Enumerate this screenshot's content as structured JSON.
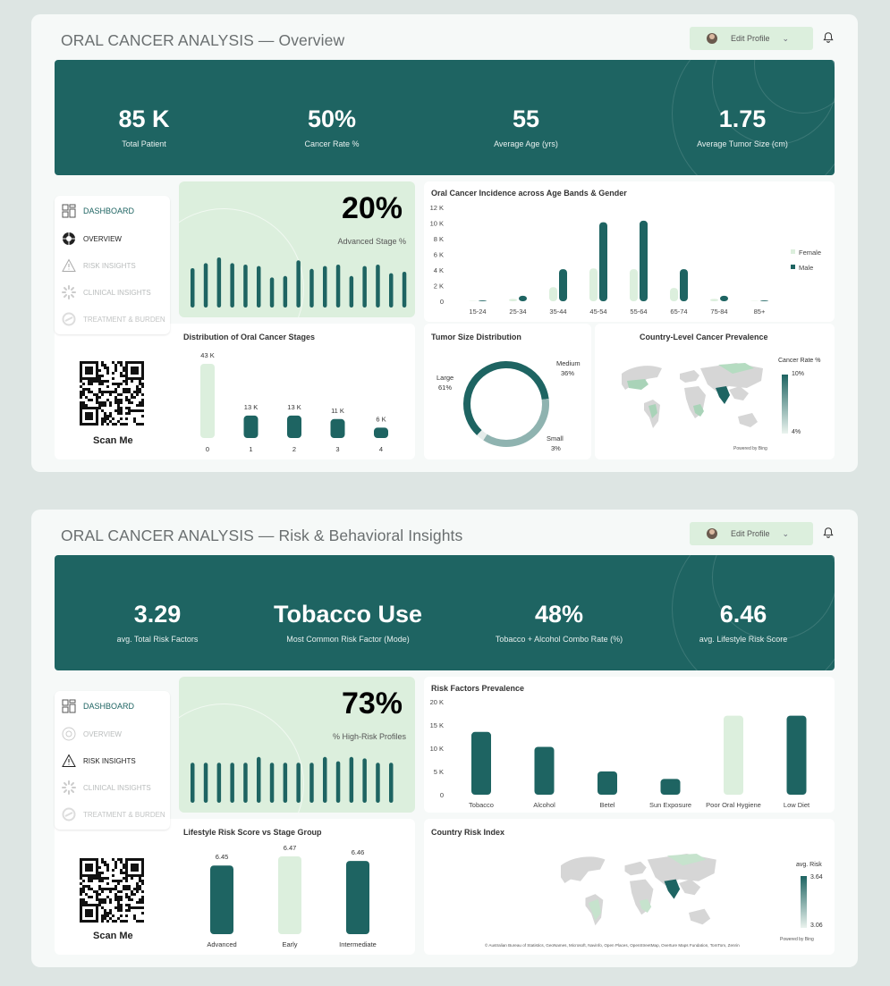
{
  "app": {
    "profile_label": "Edit Profile",
    "scan_label": "Scan Me",
    "powered_by": "Powered by Bing"
  },
  "overview": {
    "title": "ORAL CANCER ANALYSIS — Overview",
    "kpis": [
      {
        "value": "85 K",
        "label": "Total Patient"
      },
      {
        "value": "50%",
        "label": "Cancer Rate %"
      },
      {
        "value": "55",
        "label": "Average Age (yrs)"
      },
      {
        "value": "1.75",
        "label": "Average Tumor Size (cm)"
      }
    ],
    "nav": [
      {
        "label": "DASHBOARD",
        "icon": "dashboard-icon",
        "state": "active"
      },
      {
        "label": "OVERVIEW",
        "icon": "overview-icon",
        "state": "current"
      },
      {
        "label": "RISK INSIGHTS",
        "icon": "warning-icon",
        "state": "dim"
      },
      {
        "label": "CLINICAL INSIGHTS",
        "icon": "clinical-icon",
        "state": "dim"
      },
      {
        "label": "TREATMENT & BURDEN",
        "icon": "treatment-icon",
        "state": "dim"
      }
    ],
    "highlight": {
      "value": "20%",
      "label": "Advanced Stage %"
    },
    "age_chart_title": "Oral Cancer Incidence across Age Bands & Gender",
    "stage_chart_title": "Distribution of Oral Cancer Stages",
    "tumor_chart_title": "Tumor Size Distribution",
    "map_title": "Country-Level Cancer Prevalence",
    "map_legend": {
      "title": "Cancer Rate %",
      "max": "10%",
      "min": "4%"
    }
  },
  "risk": {
    "title": "ORAL CANCER ANALYSIS — Risk & Behavioral Insights",
    "kpis": [
      {
        "value": "3.29",
        "label": "avg. Total Risk Factors"
      },
      {
        "value": "Tobacco Use",
        "label": "Most Common Risk Factor (Mode)"
      },
      {
        "value": "48%",
        "label": "Tobacco + Alcohol Combo Rate (%)"
      },
      {
        "value": "6.46",
        "label": "avg. Lifestyle Risk Score"
      }
    ],
    "nav": [
      {
        "label": "DASHBOARD",
        "icon": "dashboard-icon",
        "state": "active"
      },
      {
        "label": "OVERVIEW",
        "icon": "overview-icon",
        "state": "dim"
      },
      {
        "label": "RISK INSIGHTS",
        "icon": "warning-icon",
        "state": "current"
      },
      {
        "label": "CLINICAL INSIGHTS",
        "icon": "clinical-icon",
        "state": "dim"
      },
      {
        "label": "TREATMENT & BURDEN",
        "icon": "treatment-icon",
        "state": "dim"
      }
    ],
    "highlight": {
      "value": "73%",
      "label": "% High-Risk Profiles"
    },
    "risk_chart_title": "Risk Factors Prevalence",
    "lifestyle_chart_title": "Lifestyle Risk Score vs Stage Group",
    "map_title": "Country Risk Index",
    "map_legend": {
      "title": "avg. Risk",
      "max": "3.64",
      "min": "3.06"
    },
    "map_credits": "© Australian Bureau of Statistics, GeoNames, Microsoft, Navinfo, Open Places, OpenStreetMap, Overture Maps Fundation, TomTom, Zenrin"
  },
  "colors": {
    "teal": "#1e6462",
    "mint": "#dcefdd",
    "gray_slice": "#8fb3b0"
  },
  "chart_data": [
    {
      "type": "bar",
      "title": "Oral Cancer Incidence across Age Bands & Gender",
      "categories": [
        "15-24",
        "25-34",
        "35-44",
        "45-54",
        "55-64",
        "65-74",
        "75-84",
        "85+"
      ],
      "series": [
        {
          "name": "Female",
          "values": [
            50,
            300,
            1800,
            4200,
            4100,
            1700,
            300,
            50
          ]
        },
        {
          "name": "Male",
          "values": [
            100,
            700,
            4100,
            10100,
            10300,
            4100,
            700,
            100
          ]
        }
      ],
      "yticks": [
        "0",
        "2 K",
        "4 K",
        "6 K",
        "8 K",
        "10 K",
        "12 K"
      ],
      "ylim": [
        0,
        12000
      ],
      "legend": "right"
    },
    {
      "type": "bar",
      "title": "Distribution of Oral Cancer Stages",
      "categories": [
        "0",
        "1",
        "2",
        "3",
        "4"
      ],
      "values": [
        43000,
        13000,
        13000,
        11000,
        6000
      ],
      "data_labels": [
        "43 K",
        "13 K",
        "13 K",
        "11 K",
        "6 K"
      ],
      "ylim": [
        0,
        43000
      ]
    },
    {
      "type": "pie",
      "title": "Tumor Size Distribution",
      "categories": [
        "Large",
        "Medium",
        "Small"
      ],
      "values": [
        61,
        36,
        3
      ],
      "data_labels": [
        "61%",
        "36%",
        "3%"
      ]
    },
    {
      "type": "bar",
      "title": "Advanced Stage %",
      "values": [
        0.55,
        0.62,
        0.7,
        0.62,
        0.6,
        0.58,
        0.42,
        0.44,
        0.66,
        0.54,
        0.58,
        0.6,
        0.44,
        0.58,
        0.6,
        0.48,
        0.5
      ]
    },
    {
      "type": "bar",
      "title": "Risk Factors Prevalence",
      "categories": [
        "Tobacco",
        "Alcohol",
        "Betel",
        "Sun Exposure",
        "Poor Oral Hygiene",
        "Low Diet"
      ],
      "values": [
        13500,
        10300,
        5000,
        3400,
        17000,
        17000
      ],
      "highlight": [
        false,
        false,
        false,
        false,
        true,
        false
      ],
      "yticks": [
        "0",
        "5 K",
        "10 K",
        "15 K",
        "20 K"
      ],
      "ylim": [
        0,
        20000
      ]
    },
    {
      "type": "bar",
      "title": "Lifestyle Risk Score vs Stage Group",
      "categories": [
        "Advanced",
        "Early",
        "Intermediate"
      ],
      "values": [
        6.45,
        6.47,
        6.46
      ],
      "data_labels": [
        "6.45",
        "6.47",
        "6.46"
      ],
      "highlight": [
        false,
        true,
        false
      ]
    },
    {
      "type": "bar",
      "title": "% High-Risk Profiles",
      "values": [
        0.56,
        0.56,
        0.56,
        0.56,
        0.56,
        0.64,
        0.56,
        0.56,
        0.56,
        0.56,
        0.64,
        0.58,
        0.64,
        0.62,
        0.56,
        0.56
      ]
    }
  ]
}
